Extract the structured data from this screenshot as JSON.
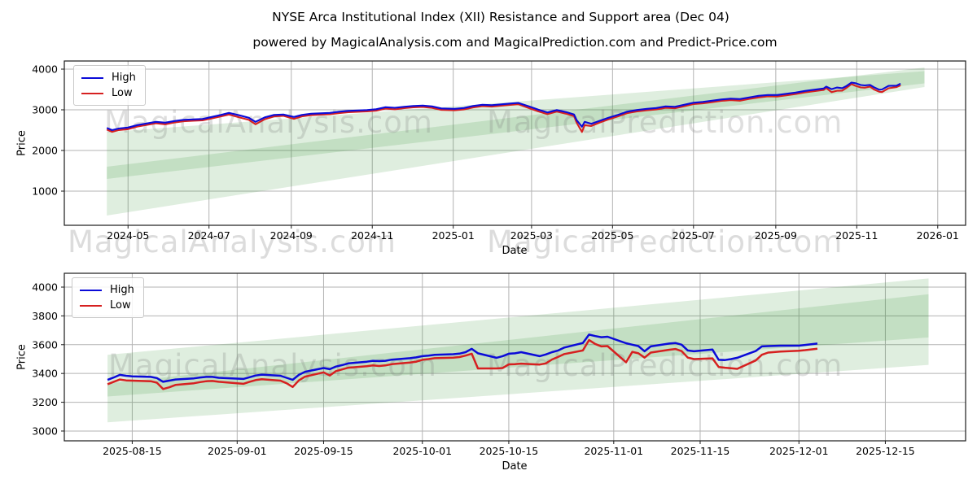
{
  "figure": {
    "title": "NYSE Arca Institutional Index (XII) Resistance and Support area (Dec 04)",
    "subtitle": "powered by MagicalAnalysis.com and MagicalPrediction.com and Predict-Price.com",
    "background": "#ffffff"
  },
  "watermarks": {
    "analysis": "MagicalAnalysis.com",
    "prediction": "MagicalPrediction.com"
  },
  "colors": {
    "high": "#0b0bd8",
    "low": "#d62020",
    "band": "#2a8c2a",
    "grid": "#b3b3b3",
    "spine": "#1a1a1a",
    "watermark": "#808080"
  },
  "chart_data": [
    {
      "type": "line",
      "xlabel": "Date",
      "ylabel": "Price",
      "grid": true,
      "legend_position": "upper left",
      "xlim": [
        "2024-03-14",
        "2026-01-22"
      ],
      "ylim": [
        160,
        4200
      ],
      "yticks": [
        1000,
        2000,
        3000,
        4000
      ],
      "xtick_dates": [
        "2024-05-01",
        "2024-07-01",
        "2024-09-01",
        "2024-11-01",
        "2025-01-01",
        "2025-03-01",
        "2025-05-01",
        "2025-07-01",
        "2025-09-01",
        "2025-11-01",
        "2026-01-01"
      ],
      "xtick_labels": [
        "2024-05",
        "2024-07",
        "2024-09",
        "2024-11",
        "2025-01",
        "2025-03",
        "2025-05",
        "2025-07",
        "2025-09",
        "2025-11",
        "2026-01"
      ],
      "dates": [
        "2024-04-15",
        "2024-04-19",
        "2024-04-24",
        "2024-05-01",
        "2024-05-08",
        "2024-05-15",
        "2024-05-22",
        "2024-05-29",
        "2024-06-05",
        "2024-06-12",
        "2024-06-19",
        "2024-06-26",
        "2024-07-03",
        "2024-07-10",
        "2024-07-16",
        "2024-07-24",
        "2024-07-31",
        "2024-08-05",
        "2024-08-12",
        "2024-08-19",
        "2024-08-26",
        "2024-09-03",
        "2024-09-09",
        "2024-09-16",
        "2024-09-23",
        "2024-09-30",
        "2024-10-07",
        "2024-10-14",
        "2024-10-21",
        "2024-10-28",
        "2024-11-04",
        "2024-11-11",
        "2024-11-18",
        "2024-11-25",
        "2024-12-02",
        "2024-12-09",
        "2024-12-16",
        "2024-12-23",
        "2025-01-02",
        "2025-01-09",
        "2025-01-16",
        "2025-01-23",
        "2025-01-30",
        "2025-02-06",
        "2025-02-13",
        "2025-02-19",
        "2025-02-27",
        "2025-03-06",
        "2025-03-13",
        "2025-03-20",
        "2025-03-27",
        "2025-04-02",
        "2025-04-04",
        "2025-04-08",
        "2025-04-10",
        "2025-04-15",
        "2025-04-21",
        "2025-04-28",
        "2025-05-05",
        "2025-05-12",
        "2025-05-19",
        "2025-05-27",
        "2025-06-03",
        "2025-06-10",
        "2025-06-17",
        "2025-06-24",
        "2025-07-01",
        "2025-07-08",
        "2025-07-15",
        "2025-07-22",
        "2025-07-29",
        "2025-08-05",
        "2025-08-12",
        "2025-08-19",
        "2025-08-26",
        "2025-09-02",
        "2025-09-09",
        "2025-09-16",
        "2025-09-23",
        "2025-09-30",
        "2025-10-07",
        "2025-10-09",
        "2025-10-13",
        "2025-10-17",
        "2025-10-21",
        "2025-10-24",
        "2025-10-28",
        "2025-10-31",
        "2025-11-04",
        "2025-11-07",
        "2025-11-11",
        "2025-11-14",
        "2025-11-18",
        "2025-11-20",
        "2025-11-25",
        "2025-12-01",
        "2025-12-04"
      ],
      "series": [
        {
          "name": "High",
          "color": "#0b0bd8",
          "values": [
            2555,
            2500,
            2540,
            2565,
            2625,
            2665,
            2705,
            2685,
            2725,
            2755,
            2765,
            2775,
            2825,
            2875,
            2925,
            2865,
            2805,
            2705,
            2815,
            2875,
            2885,
            2825,
            2875,
            2905,
            2915,
            2925,
            2955,
            2975,
            2985,
            2995,
            3015,
            3065,
            3050,
            3075,
            3095,
            3105,
            3085,
            3035,
            3025,
            3045,
            3095,
            3125,
            3115,
            3135,
            3155,
            3170,
            3085,
            3005,
            2935,
            2995,
            2945,
            2885,
            2745,
            2585,
            2705,
            2655,
            2725,
            2805,
            2875,
            2955,
            2995,
            3025,
            3045,
            3085,
            3075,
            3125,
            3175,
            3195,
            3225,
            3255,
            3275,
            3265,
            3305,
            3345,
            3365,
            3365,
            3395,
            3425,
            3465,
            3495,
            3525,
            3571,
            3509,
            3548,
            3532,
            3580,
            3670,
            3655,
            3610,
            3600,
            3612,
            3554,
            3495,
            3500,
            3588,
            3593,
            3645
          ]
        },
        {
          "name": "Low",
          "color": "#d62020",
          "values": [
            2515,
            2458,
            2502,
            2525,
            2588,
            2628,
            2668,
            2645,
            2688,
            2718,
            2730,
            2740,
            2788,
            2838,
            2882,
            2812,
            2752,
            2645,
            2768,
            2838,
            2852,
            2778,
            2838,
            2868,
            2880,
            2890,
            2918,
            2940,
            2950,
            2960,
            2978,
            3030,
            3012,
            3040,
            3060,
            3072,
            3048,
            2998,
            2988,
            3008,
            3058,
            3090,
            3078,
            3100,
            3122,
            3136,
            3042,
            2962,
            2892,
            2958,
            2905,
            2842,
            2682,
            2455,
            2622,
            2602,
            2682,
            2765,
            2838,
            2918,
            2958,
            2988,
            3008,
            3048,
            3038,
            3088,
            3140,
            3158,
            3188,
            3220,
            3238,
            3225,
            3268,
            3305,
            3330,
            3326,
            3356,
            3388,
            3428,
            3458,
            3488,
            3537,
            3435,
            3468,
            3470,
            3535,
            3632,
            3590,
            3550,
            3545,
            3570,
            3500,
            3445,
            3436,
            3530,
            3558,
            3602
          ]
        }
      ],
      "bands": [
        {
          "start": "2024-04-15",
          "end": "2025-12-22",
          "top_start": 2450,
          "top_end": 3950,
          "bottom_start": 400,
          "bottom_end": 3560,
          "color": "#2a8c2a",
          "opacity": 0.15
        },
        {
          "start": "2024-04-15",
          "end": "2025-12-22",
          "top_start": 1600,
          "top_end": 4040,
          "bottom_start": 1300,
          "bottom_end": 3650,
          "color": "#2a8c2a",
          "opacity": 0.15
        }
      ]
    },
    {
      "type": "line",
      "xlabel": "Date",
      "ylabel": "Price",
      "grid": true,
      "legend_position": "upper left",
      "xlim": [
        "2025-08-04",
        "2025-12-28"
      ],
      "ylim": [
        2932,
        4096
      ],
      "yticks": [
        3000,
        3200,
        3400,
        3600,
        3800,
        4000
      ],
      "xtick_dates": [
        "2025-08-15",
        "2025-09-01",
        "2025-09-15",
        "2025-10-01",
        "2025-10-15",
        "2025-11-01",
        "2025-11-15",
        "2025-12-01",
        "2025-12-15"
      ],
      "xtick_labels": [
        "2025-08-15",
        "2025-09-01",
        "2025-09-15",
        "2025-10-01",
        "2025-10-15",
        "2025-11-01",
        "2025-11-15",
        "2025-12-01",
        "2025-12-15"
      ],
      "dates": [
        "2025-08-11",
        "2025-08-12",
        "2025-08-13",
        "2025-08-14",
        "2025-08-15",
        "2025-08-18",
        "2025-08-19",
        "2025-08-20",
        "2025-08-21",
        "2025-08-22",
        "2025-08-25",
        "2025-08-26",
        "2025-08-27",
        "2025-08-28",
        "2025-08-29",
        "2025-09-02",
        "2025-09-03",
        "2025-09-04",
        "2025-09-05",
        "2025-09-08",
        "2025-09-09",
        "2025-09-10",
        "2025-09-11",
        "2025-09-12",
        "2025-09-15",
        "2025-09-16",
        "2025-09-17",
        "2025-09-18",
        "2025-09-19",
        "2025-09-22",
        "2025-09-23",
        "2025-09-24",
        "2025-09-25",
        "2025-09-26",
        "2025-09-29",
        "2025-09-30",
        "2025-10-01",
        "2025-10-02",
        "2025-10-03",
        "2025-10-06",
        "2025-10-07",
        "2025-10-08",
        "2025-10-09",
        "2025-10-10",
        "2025-10-13",
        "2025-10-14",
        "2025-10-15",
        "2025-10-16",
        "2025-10-17",
        "2025-10-20",
        "2025-10-21",
        "2025-10-22",
        "2025-10-23",
        "2025-10-24",
        "2025-10-27",
        "2025-10-28",
        "2025-10-29",
        "2025-10-30",
        "2025-10-31",
        "2025-11-03",
        "2025-11-04",
        "2025-11-05",
        "2025-11-06",
        "2025-11-07",
        "2025-11-10",
        "2025-11-11",
        "2025-11-12",
        "2025-11-13",
        "2025-11-14",
        "2025-11-17",
        "2025-11-18",
        "2025-11-19",
        "2025-11-20",
        "2025-11-21",
        "2025-11-24",
        "2025-11-25",
        "2025-11-26",
        "2025-11-28",
        "2025-12-01",
        "2025-12-02",
        "2025-12-04"
      ],
      "series": [
        {
          "name": "High",
          "color": "#0b0bd8",
          "values": [
            3355,
            3372,
            3390,
            3384,
            3380,
            3376,
            3368,
            3342,
            3350,
            3358,
            3366,
            3372,
            3376,
            3376,
            3370,
            3362,
            3374,
            3386,
            3392,
            3384,
            3370,
            3356,
            3390,
            3412,
            3438,
            3430,
            3448,
            3458,
            3470,
            3482,
            3488,
            3486,
            3488,
            3496,
            3506,
            3512,
            3520,
            3524,
            3530,
            3534,
            3538,
            3548,
            3571,
            3540,
            3509,
            3520,
            3537,
            3540,
            3548,
            3520,
            3532,
            3548,
            3560,
            3580,
            3612,
            3670,
            3660,
            3652,
            3655,
            3610,
            3600,
            3590,
            3554,
            3588,
            3608,
            3612,
            3600,
            3560,
            3554,
            3566,
            3495,
            3493,
            3500,
            3509,
            3556,
            3588,
            3590,
            3593,
            3593,
            3598,
            3608
          ]
        },
        {
          "name": "Low",
          "color": "#d62020",
          "values": [
            3325,
            3342,
            3358,
            3352,
            3350,
            3346,
            3336,
            3292,
            3304,
            3320,
            3332,
            3340,
            3346,
            3348,
            3342,
            3328,
            3342,
            3354,
            3360,
            3350,
            3332,
            3306,
            3352,
            3378,
            3408,
            3386,
            3416,
            3428,
            3440,
            3450,
            3456,
            3452,
            3456,
            3464,
            3476,
            3482,
            3495,
            3500,
            3506,
            3510,
            3514,
            3524,
            3537,
            3435,
            3435,
            3438,
            3463,
            3465,
            3468,
            3462,
            3470,
            3497,
            3515,
            3535,
            3560,
            3632,
            3605,
            3588,
            3590,
            3478,
            3550,
            3540,
            3510,
            3545,
            3565,
            3570,
            3555,
            3510,
            3500,
            3505,
            3445,
            3440,
            3436,
            3432,
            3490,
            3530,
            3545,
            3552,
            3558,
            3562,
            3572
          ]
        }
      ],
      "bands": [
        {
          "start": "2025-08-11",
          "end": "2025-12-22",
          "top_start": 3330,
          "top_end": 3950,
          "bottom_start": 3060,
          "bottom_end": 3460,
          "color": "#2a8c2a",
          "opacity": 0.15
        },
        {
          "start": "2025-08-11",
          "end": "2025-12-22",
          "top_start": 3530,
          "top_end": 4060,
          "bottom_start": 3240,
          "bottom_end": 3650,
          "color": "#2a8c2a",
          "opacity": 0.15
        }
      ]
    }
  ]
}
